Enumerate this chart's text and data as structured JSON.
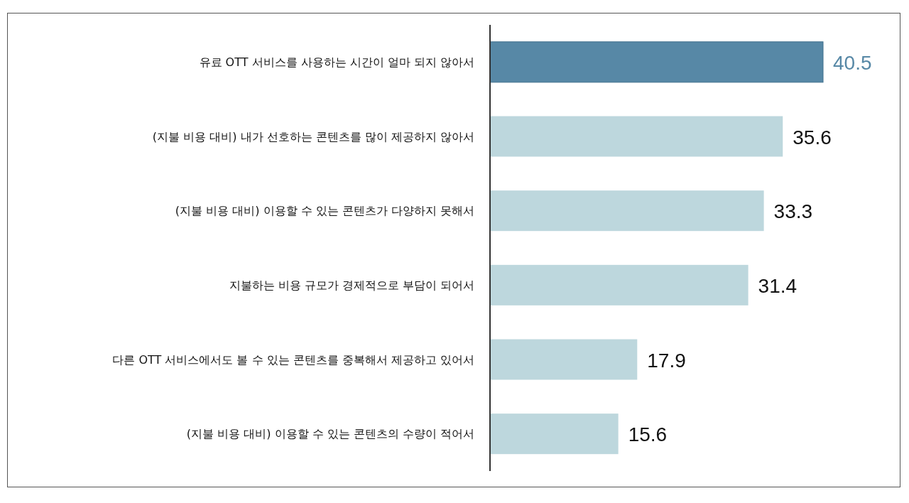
{
  "chart_data": {
    "type": "bar",
    "orientation": "horizontal",
    "data_labels": true,
    "categories": [
      "유료 OTT 서비스를 사용하는 시간이 얼마 되지 않아서",
      "(지불 비용 대비) 내가 선호하는 콘텐츠를 많이 제공하지 않아서",
      "(지불 비용 대비) 이용할 수 있는 콘텐츠가 다양하지 못해서",
      "지불하는 비용 규모가 경제적으로 부담이 되어서",
      "다른 OTT 서비스에서도 볼 수 있는 콘텐츠를 중복해서 제공하고 있어서",
      "(지불 비용 대비) 이용할 수 있는 콘텐츠의 수량이 적어서"
    ],
    "values": [
      40.5,
      35.6,
      33.3,
      31.4,
      17.9,
      15.6
    ],
    "colors": [
      "#5788a6",
      "#bdd7dd",
      "#bdd7dd",
      "#bdd7dd",
      "#bdd7dd",
      "#bdd7dd"
    ]
  }
}
